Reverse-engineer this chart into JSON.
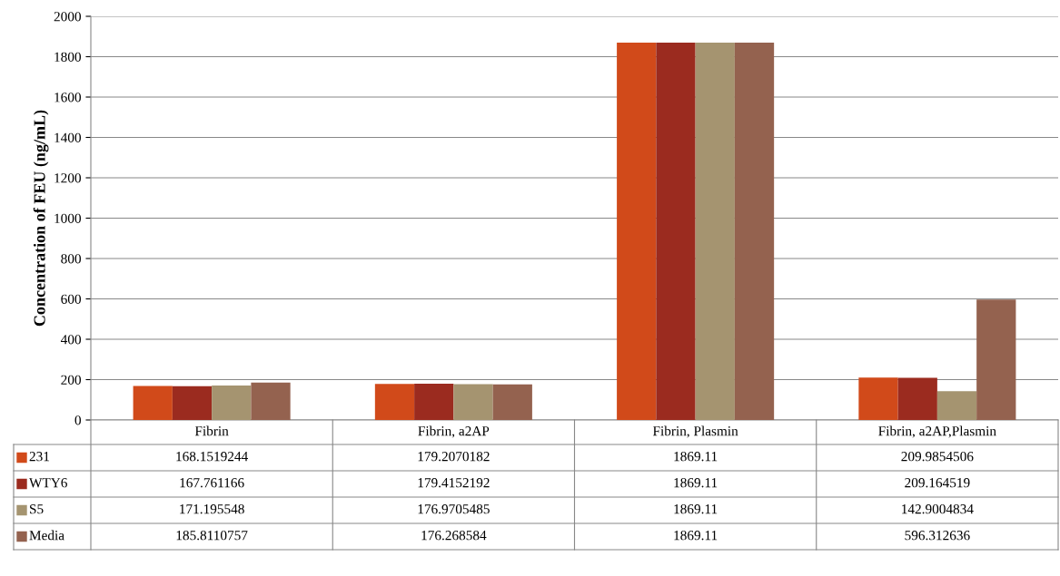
{
  "chart_data": {
    "type": "bar",
    "ylabel": "Concentration of FEU (ng/mL)",
    "categories": [
      "Fibrin",
      "Fibrin, a2AP",
      "Fibrin, Plasmin",
      "Fibrin, a2AP,Plasmin"
    ],
    "series": [
      {
        "name": "231",
        "color": "#d14a1a",
        "values": [
          168.1519244,
          179.2070182,
          1869.11,
          209.9854506
        ]
      },
      {
        "name": "WTY6",
        "color": "#9b2b1f",
        "values": [
          167.761166,
          179.4152192,
          1869.11,
          209.164519
        ]
      },
      {
        "name": "S5",
        "color": "#a59470",
        "values": [
          171.195548,
          176.9705485,
          1869.11,
          142.9004834
        ]
      },
      {
        "name": "Media",
        "color": "#94624f",
        "values": [
          185.8110757,
          176.268584,
          1869.11,
          596.312636
        ]
      }
    ],
    "ylim": [
      0,
      2000
    ],
    "yticks": [
      0,
      200,
      400,
      600,
      800,
      1000,
      1200,
      1400,
      1600,
      1800,
      2000
    ],
    "grid": "y",
    "legend": "bottom",
    "data_labels": true
  }
}
